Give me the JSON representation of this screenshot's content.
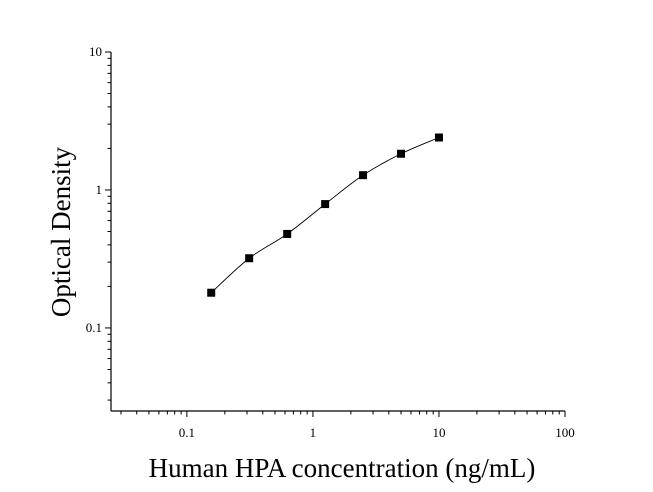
{
  "chart_data": {
    "type": "scatter",
    "title": "",
    "xlabel": "Human HPA concentration (ng/mL)",
    "ylabel": "Optical Density",
    "x_scale": "log",
    "y_scale": "log",
    "xlim": [
      0.025,
      100
    ],
    "ylim": [
      0.025,
      10
    ],
    "x_ticks": [
      {
        "value": 0.1,
        "label": "0.1"
      },
      {
        "value": 1,
        "label": "1"
      },
      {
        "value": 10,
        "label": "10"
      },
      {
        "value": 100,
        "label": "100"
      }
    ],
    "y_ticks": [
      {
        "value": 0.1,
        "label": "0.1"
      },
      {
        "value": 1,
        "label": "1"
      },
      {
        "value": 10,
        "label": "10"
      }
    ],
    "grid": false,
    "legend": "none",
    "marker": "square",
    "series": [
      {
        "x": [
          0.156,
          0.312,
          0.625,
          1.25,
          2.5,
          5,
          10
        ],
        "y": [
          0.18,
          0.32,
          0.48,
          0.79,
          1.28,
          1.83,
          2.4
        ]
      }
    ],
    "fit_curve": true,
    "colors": {
      "marker": "#000000",
      "curve": "#000000",
      "axis": "#000000"
    }
  }
}
